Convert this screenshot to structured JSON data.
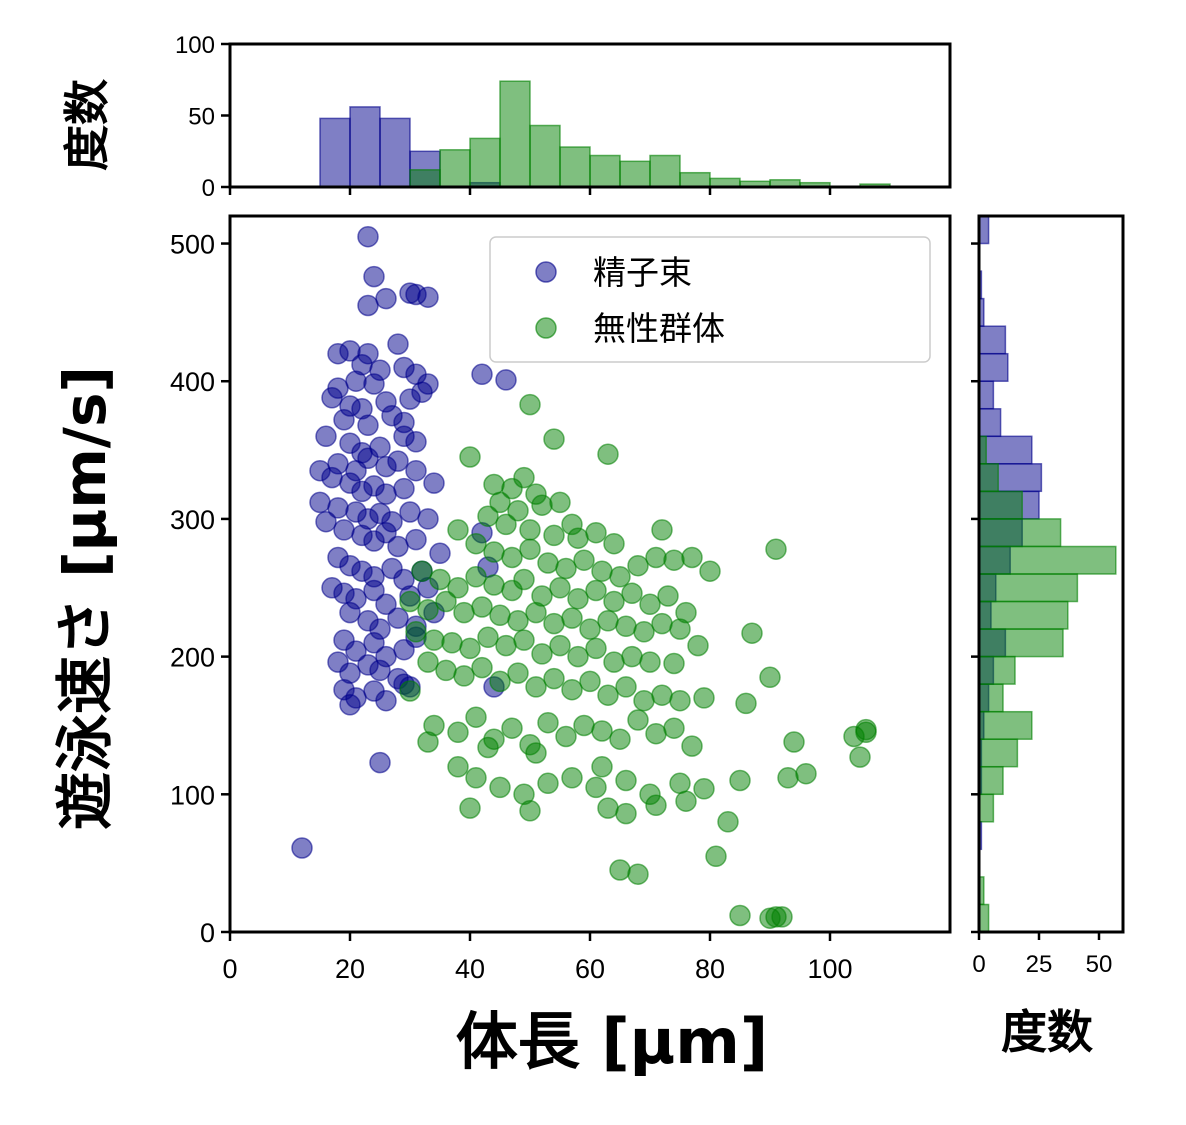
{
  "chart_data": {
    "type": "scatter",
    "xlabel": "体長 [μm]",
    "ylabel": "遊泳速さ [μm/s]",
    "xlim": [
      0,
      120
    ],
    "ylim": [
      0,
      520
    ],
    "xticks": [
      0,
      20,
      40,
      60,
      80,
      100
    ],
    "yticks": [
      0,
      100,
      200,
      300,
      400,
      500
    ],
    "legend_position": "top-right",
    "series": [
      {
        "name": "精子束",
        "color": "#00008b",
        "points": [
          [
            23,
            505
          ],
          [
            24,
            476
          ],
          [
            23,
            455
          ],
          [
            26,
            460
          ],
          [
            30,
            464
          ],
          [
            31,
            463
          ],
          [
            33,
            461
          ],
          [
            18,
            420
          ],
          [
            20,
            422
          ],
          [
            23,
            420
          ],
          [
            28,
            427
          ],
          [
            22,
            412
          ],
          [
            25,
            408
          ],
          [
            18,
            395
          ],
          [
            21,
            400
          ],
          [
            24,
            398
          ],
          [
            29,
            410
          ],
          [
            31,
            405
          ],
          [
            33,
            398
          ],
          [
            17,
            388
          ],
          [
            20,
            382
          ],
          [
            22,
            380
          ],
          [
            26,
            385
          ],
          [
            30,
            387
          ],
          [
            32,
            392
          ],
          [
            19,
            372
          ],
          [
            23,
            368
          ],
          [
            27,
            375
          ],
          [
            29,
            370
          ],
          [
            42,
            405
          ],
          [
            46,
            401
          ],
          [
            16,
            360
          ],
          [
            20,
            355
          ],
          [
            22,
            348
          ],
          [
            25,
            352
          ],
          [
            29,
            360
          ],
          [
            31,
            356
          ],
          [
            18,
            340
          ],
          [
            21,
            335
          ],
          [
            23,
            344
          ],
          [
            26,
            338
          ],
          [
            28,
            342
          ],
          [
            31,
            335
          ],
          [
            15,
            335
          ],
          [
            17,
            330
          ],
          [
            20,
            326
          ],
          [
            22,
            320
          ],
          [
            24,
            324
          ],
          [
            26,
            318
          ],
          [
            29,
            322
          ],
          [
            34,
            326
          ],
          [
            15,
            312
          ],
          [
            18,
            308
          ],
          [
            21,
            305
          ],
          [
            23,
            300
          ],
          [
            25,
            304
          ],
          [
            27,
            298
          ],
          [
            30,
            305
          ],
          [
            33,
            300
          ],
          [
            16,
            298
          ],
          [
            19,
            292
          ],
          [
            22,
            288
          ],
          [
            24,
            284
          ],
          [
            26,
            290
          ],
          [
            28,
            280
          ],
          [
            31,
            285
          ],
          [
            35,
            275
          ],
          [
            42,
            290
          ],
          [
            43,
            265
          ],
          [
            18,
            272
          ],
          [
            20,
            266
          ],
          [
            22,
            262
          ],
          [
            24,
            258
          ],
          [
            27,
            264
          ],
          [
            29,
            256
          ],
          [
            32,
            262
          ],
          [
            17,
            250
          ],
          [
            19,
            246
          ],
          [
            21,
            242
          ],
          [
            24,
            248
          ],
          [
            26,
            238
          ],
          [
            30,
            244
          ],
          [
            33,
            250
          ],
          [
            20,
            232
          ],
          [
            23,
            226
          ],
          [
            25,
            220
          ],
          [
            28,
            228
          ],
          [
            31,
            222
          ],
          [
            34,
            232
          ],
          [
            19,
            212
          ],
          [
            21,
            204
          ],
          [
            24,
            210
          ],
          [
            26,
            200
          ],
          [
            29,
            205
          ],
          [
            31,
            214
          ],
          [
            18,
            196
          ],
          [
            20,
            188
          ],
          [
            23,
            194
          ],
          [
            25,
            190
          ],
          [
            28,
            184
          ],
          [
            30,
            178
          ],
          [
            19,
            176
          ],
          [
            21,
            170
          ],
          [
            24,
            175
          ],
          [
            26,
            168
          ],
          [
            20,
            165
          ],
          [
            29,
            180
          ],
          [
            25,
            123
          ],
          [
            12,
            61
          ],
          [
            44,
            178
          ]
        ]
      },
      {
        "name": "無性群体",
        "color": "#008000",
        "points": [
          [
            50,
            383
          ],
          [
            54,
            358
          ],
          [
            63,
            347
          ],
          [
            40,
            345
          ],
          [
            44,
            325
          ],
          [
            47,
            322
          ],
          [
            49,
            330
          ],
          [
            51,
            318
          ],
          [
            45,
            312
          ],
          [
            48,
            306
          ],
          [
            52,
            310
          ],
          [
            55,
            312
          ],
          [
            57,
            296
          ],
          [
            43,
            302
          ],
          [
            46,
            296
          ],
          [
            50,
            292
          ],
          [
            54,
            288
          ],
          [
            58,
            286
          ],
          [
            61,
            290
          ],
          [
            64,
            282
          ],
          [
            72,
            292
          ],
          [
            38,
            292
          ],
          [
            41,
            282
          ],
          [
            44,
            276
          ],
          [
            47,
            272
          ],
          [
            50,
            278
          ],
          [
            53,
            268
          ],
          [
            56,
            264
          ],
          [
            59,
            270
          ],
          [
            62,
            262
          ],
          [
            65,
            258
          ],
          [
            68,
            266
          ],
          [
            71,
            272
          ],
          [
            74,
            270
          ],
          [
            77,
            272
          ],
          [
            80,
            262
          ],
          [
            91,
            278
          ],
          [
            32,
            262
          ],
          [
            35,
            256
          ],
          [
            38,
            250
          ],
          [
            41,
            258
          ],
          [
            44,
            252
          ],
          [
            47,
            248
          ],
          [
            49,
            256
          ],
          [
            52,
            244
          ],
          [
            55,
            250
          ],
          [
            58,
            242
          ],
          [
            61,
            248
          ],
          [
            64,
            240
          ],
          [
            67,
            246
          ],
          [
            70,
            238
          ],
          [
            73,
            244
          ],
          [
            76,
            232
          ],
          [
            30,
            240
          ],
          [
            33,
            234
          ],
          [
            36,
            240
          ],
          [
            39,
            232
          ],
          [
            42,
            236
          ],
          [
            45,
            230
          ],
          [
            48,
            226
          ],
          [
            51,
            232
          ],
          [
            54,
            224
          ],
          [
            57,
            228
          ],
          [
            60,
            220
          ],
          [
            63,
            226
          ],
          [
            66,
            222
          ],
          [
            69,
            218
          ],
          [
            72,
            224
          ],
          [
            75,
            220
          ],
          [
            31,
            218
          ],
          [
            34,
            212
          ],
          [
            37,
            210
          ],
          [
            40,
            206
          ],
          [
            43,
            214
          ],
          [
            46,
            208
          ],
          [
            49,
            212
          ],
          [
            52,
            202
          ],
          [
            55,
            208
          ],
          [
            58,
            200
          ],
          [
            61,
            206
          ],
          [
            64,
            196
          ],
          [
            67,
            200
          ],
          [
            70,
            196
          ],
          [
            74,
            195
          ],
          [
            78,
            208
          ],
          [
            87,
            217
          ],
          [
            33,
            196
          ],
          [
            36,
            190
          ],
          [
            39,
            186
          ],
          [
            42,
            192
          ],
          [
            45,
            182
          ],
          [
            48,
            188
          ],
          [
            51,
            178
          ],
          [
            54,
            184
          ],
          [
            57,
            176
          ],
          [
            60,
            182
          ],
          [
            63,
            172
          ],
          [
            66,
            178
          ],
          [
            69,
            168
          ],
          [
            72,
            172
          ],
          [
            75,
            168
          ],
          [
            79,
            170
          ],
          [
            86,
            166
          ],
          [
            90,
            185
          ],
          [
            30,
            175
          ],
          [
            34,
            150
          ],
          [
            38,
            145
          ],
          [
            41,
            156
          ],
          [
            44,
            140
          ],
          [
            47,
            148
          ],
          [
            50,
            136
          ],
          [
            53,
            152
          ],
          [
            56,
            142
          ],
          [
            59,
            150
          ],
          [
            62,
            146
          ],
          [
            65,
            140
          ],
          [
            68,
            154
          ],
          [
            71,
            144
          ],
          [
            74,
            148
          ],
          [
            77,
            135
          ],
          [
            33,
            138
          ],
          [
            43,
            134
          ],
          [
            51,
            130
          ],
          [
            62,
            120
          ],
          [
            38,
            120
          ],
          [
            41,
            112
          ],
          [
            45,
            105
          ],
          [
            49,
            100
          ],
          [
            53,
            108
          ],
          [
            57,
            112
          ],
          [
            61,
            105
          ],
          [
            66,
            110
          ],
          [
            70,
            100
          ],
          [
            75,
            108
          ],
          [
            79,
            104
          ],
          [
            85,
            110
          ],
          [
            93,
            112
          ],
          [
            96,
            115
          ],
          [
            94,
            138
          ],
          [
            104,
            142
          ],
          [
            40,
            90
          ],
          [
            50,
            88
          ],
          [
            63,
            90
          ],
          [
            66,
            86
          ],
          [
            71,
            92
          ],
          [
            76,
            95
          ],
          [
            83,
            80
          ],
          [
            65,
            45
          ],
          [
            68,
            42
          ],
          [
            81,
            55
          ],
          [
            85,
            12
          ],
          [
            90,
            10
          ],
          [
            91,
            11
          ],
          [
            92,
            11
          ],
          [
            105,
            127
          ],
          [
            106,
            147
          ],
          [
            106,
            145
          ]
        ]
      }
    ],
    "top_histogram": {
      "ylabel": "度数",
      "ylim": [
        0,
        100
      ],
      "yticks": [
        0,
        50,
        100
      ],
      "bin_edges": [
        15,
        20,
        25,
        30,
        35,
        40,
        45,
        50,
        55,
        60,
        65,
        70,
        75,
        80,
        85,
        90,
        95,
        100,
        105,
        110
      ],
      "series": [
        {
          "name": "精子束",
          "color": "#00008b",
          "counts": [
            48,
            56,
            48,
            25,
            0,
            3,
            0,
            0,
            0,
            0,
            0,
            0,
            0,
            0,
            0,
            0,
            0,
            0,
            0
          ]
        },
        {
          "name": "無性群体",
          "color": "#008000",
          "counts": [
            0,
            0,
            0,
            12,
            26,
            34,
            74,
            43,
            28,
            22,
            18,
            22,
            10,
            6,
            4,
            5,
            3,
            0,
            2
          ]
        }
      ]
    },
    "right_histogram": {
      "xlabel": "度数",
      "xlim": [
        0,
        60
      ],
      "xticks": [
        0,
        25,
        50
      ],
      "bin_edges": [
        0,
        20,
        40,
        60,
        80,
        100,
        120,
        140,
        160,
        180,
        200,
        220,
        240,
        260,
        280,
        300,
        320,
        340,
        360,
        380,
        400,
        420,
        440,
        460,
        480,
        500,
        520
      ],
      "series": [
        {
          "name": "精子束",
          "color": "#00008b",
          "counts": [
            0,
            0,
            0,
            1,
            0,
            1,
            1,
            2,
            4,
            6,
            11,
            5,
            7,
            13,
            18,
            25,
            26,
            22,
            9,
            6,
            12,
            11,
            2,
            1,
            0,
            4
          ]
        },
        {
          "name": "無性群体",
          "color": "#008000",
          "counts": [
            4,
            2,
            0,
            0,
            6,
            10,
            16,
            22,
            10,
            15,
            35,
            37,
            41,
            57,
            34,
            18,
            8,
            3,
            0,
            0,
            0,
            0,
            0,
            0,
            0,
            0
          ]
        }
      ]
    }
  }
}
